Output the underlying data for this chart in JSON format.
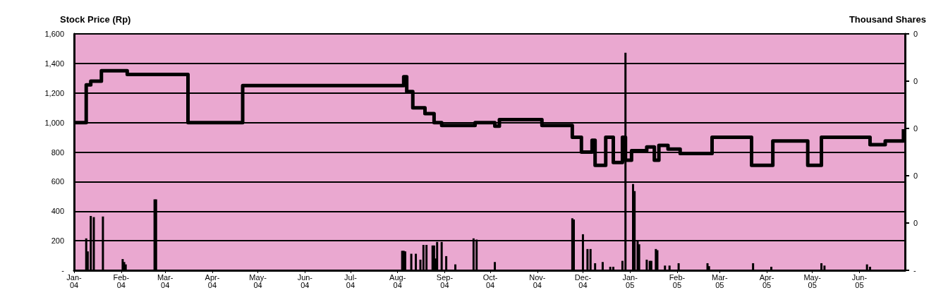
{
  "chart_data": {
    "type": "bar",
    "ylabel": "Stock Price (Rp)",
    "y2label": "Thousand Shares",
    "xlim": [
      "2004-01-01",
      "2005-07-01"
    ],
    "xticks": [
      {
        "value": "2004-01-01",
        "label": "Jan-\n04"
      },
      {
        "value": "2004-02-01",
        "label": "Feb-\n04"
      },
      {
        "value": "2004-03-01",
        "label": "Mar-\n04"
      },
      {
        "value": "2004-04-01",
        "label": "Apr-\n04"
      },
      {
        "value": "2004-05-01",
        "label": "May-\n04"
      },
      {
        "value": "2004-06-01",
        "label": "Jun-\n04"
      },
      {
        "value": "2004-07-01",
        "label": "Jul-\n04"
      },
      {
        "value": "2004-08-01",
        "label": "Aug-\n04"
      },
      {
        "value": "2004-09-01",
        "label": "Sep-\n04"
      },
      {
        "value": "2004-10-01",
        "label": "Oct-\n04"
      },
      {
        "value": "2004-11-01",
        "label": "Nov-\n04"
      },
      {
        "value": "2004-12-01",
        "label": "Dec-\n04"
      },
      {
        "value": "2005-01-01",
        "label": "Jan-\n05"
      },
      {
        "value": "2005-02-01",
        "label": "Feb-\n05"
      },
      {
        "value": "2005-03-01",
        "label": "Mar-\n05"
      },
      {
        "value": "2005-04-01",
        "label": "Apr-\n05"
      },
      {
        "value": "2005-05-01",
        "label": "May-\n05"
      },
      {
        "value": "2005-06-01",
        "label": "Jun-\n05"
      }
    ],
    "ylim": [
      0,
      1600
    ],
    "yticks": [
      {
        "value": 0,
        "label": "-"
      },
      200,
      400,
      600,
      800,
      {
        "value": 1000,
        "label": "1,000"
      },
      {
        "value": 1200,
        "label": "1,200"
      },
      {
        "value": 1400,
        "label": "1,400"
      },
      {
        "value": 1600,
        "label": "1,600"
      }
    ],
    "y2lim": [
      0,
      0.4
    ],
    "y2ticks": [
      {
        "value": 0,
        "label": "-"
      },
      {
        "value": 0.08,
        "label": "0"
      },
      {
        "value": 0.16,
        "label": "0"
      },
      {
        "value": 0.24,
        "label": "0"
      },
      {
        "value": 0.32,
        "label": "0"
      },
      {
        "value": 0.4,
        "label": "0"
      }
    ],
    "grid": "y",
    "series": [
      {
        "axis": "y2",
        "color": "#000000",
        "x": [
          "2004-01-09",
          "2004-01-10",
          "2004-01-12",
          "2004-01-14",
          "2004-01-20",
          "2004-02-02",
          "2004-02-03",
          "2004-02-04",
          "2004-02-23",
          "2004-02-24",
          "2004-08-04",
          "2004-08-05",
          "2004-08-06",
          "2004-08-10",
          "2004-08-13",
          "2004-08-16",
          "2004-08-18",
          "2004-08-20",
          "2004-08-24",
          "2004-08-25",
          "2004-08-26",
          "2004-08-27",
          "2004-08-30",
          "2004-09-02",
          "2004-09-08",
          "2004-09-20",
          "2004-09-22",
          "2004-10-04",
          "2004-11-24",
          "2004-11-25",
          "2004-12-01",
          "2004-12-04",
          "2004-12-06",
          "2004-12-09",
          "2004-12-14",
          "2004-12-19",
          "2004-12-21",
          "2004-12-27",
          "2004-12-29",
          "2005-01-03",
          "2005-01-04",
          "2005-01-06",
          "2005-01-07",
          "2005-01-12",
          "2005-01-14",
          "2005-01-15",
          "2005-01-18",
          "2005-01-19",
          "2005-01-24",
          "2005-01-27",
          "2005-02-02",
          "2005-02-21",
          "2005-02-22",
          "2005-03-23",
          "2005-04-04",
          "2005-05-07",
          "2005-05-09",
          "2005-06-06",
          "2005-06-08"
        ],
        "values": [
          0.054,
          0.032,
          0.092,
          0.09,
          0.091,
          0.019,
          0.014,
          0.01,
          0.12,
          0.12,
          0.033,
          0.033,
          0.032,
          0.028,
          0.028,
          0.018,
          0.043,
          0.043,
          0.042,
          0.042,
          0.02,
          0.048,
          0.048,
          0.024,
          0.01,
          0.054,
          0.052,
          0.014,
          0.088,
          0.086,
          0.061,
          0.036,
          0.036,
          0.012,
          0.014,
          0.006,
          0.006,
          0.016,
          0.368,
          0.146,
          0.134,
          0.051,
          0.044,
          0.018,
          0.016,
          0.016,
          0.036,
          0.034,
          0.008,
          0.008,
          0.012,
          0.012,
          0.007,
          0.012,
          0.006,
          0.012,
          0.008,
          0.01,
          0.006
        ]
      },
      {
        "type": "step",
        "axis": "y",
        "color": "#000000",
        "x": [
          "2004-01-01",
          "2004-01-09",
          "2004-01-12",
          "2004-01-19",
          "2004-02-05",
          "2004-03-16",
          "2004-04-21",
          "2004-08-05",
          "2004-08-07",
          "2004-08-11",
          "2004-08-19",
          "2004-08-25",
          "2004-08-30",
          "2004-09-21",
          "2004-10-04",
          "2004-10-07",
          "2004-11-04",
          "2004-11-24",
          "2004-11-30",
          "2004-12-07",
          "2004-12-09",
          "2004-12-16",
          "2004-12-21",
          "2004-12-27",
          "2004-12-29",
          "2005-01-02",
          "2005-01-12",
          "2005-01-17",
          "2005-01-20",
          "2005-01-26",
          "2005-02-03",
          "2005-02-24",
          "2005-03-22",
          "2005-04-05",
          "2005-04-28",
          "2005-05-07",
          "2005-06-08",
          "2005-06-18",
          "2005-06-30"
        ],
        "values": [
          1000,
          1255,
          1280,
          1350,
          1325,
          1000,
          1250,
          1310,
          1210,
          1100,
          1060,
          1000,
          980,
          1000,
          975,
          1020,
          980,
          900,
          800,
          880,
          710,
          900,
          730,
          900,
          745,
          810,
          835,
          745,
          845,
          820,
          790,
          900,
          710,
          875,
          710,
          900,
          850,
          875,
          955
        ]
      }
    ]
  }
}
